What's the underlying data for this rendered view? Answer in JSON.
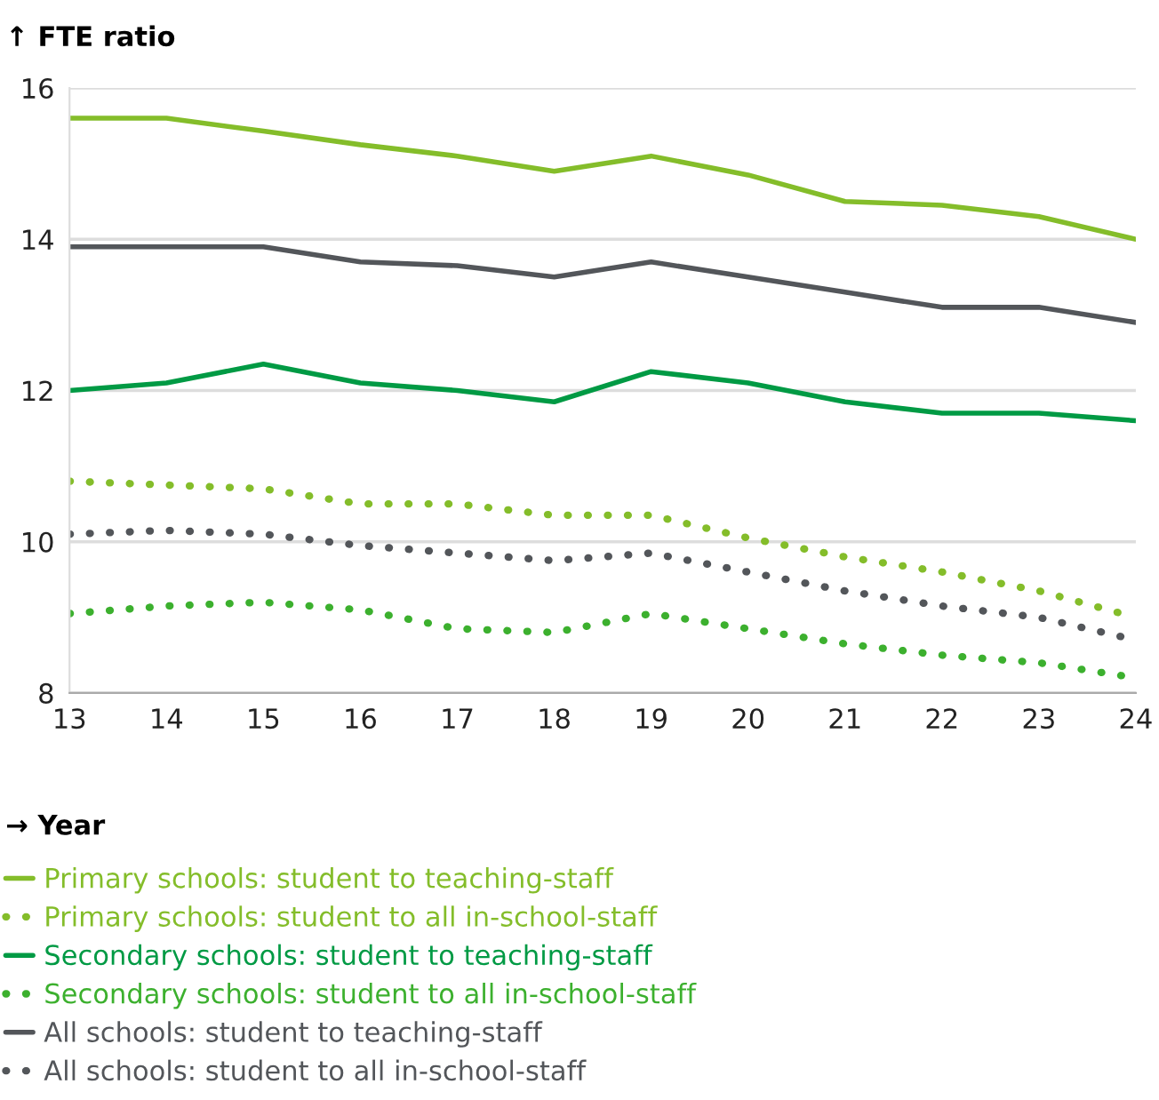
{
  "chart_data": {
    "type": "line",
    "ylabel": "↑ FTE ratio",
    "xlabel": "→ Year",
    "x": [
      13,
      14,
      15,
      16,
      17,
      18,
      19,
      20,
      21,
      22,
      23,
      24
    ],
    "xlim": [
      13,
      24
    ],
    "xticks": [
      13,
      14,
      15,
      16,
      17,
      18,
      19,
      20,
      21,
      22,
      23,
      24
    ],
    "ylim": [
      8,
      16
    ],
    "yticks": [
      8,
      10,
      12,
      14,
      16
    ],
    "grid": "y",
    "legend": "bottom",
    "marker": "none",
    "series": [
      {
        "name": "Primary schools: student to teaching-staff",
        "color": "#84bd2a",
        "line_style": "solid",
        "values": [
          15.6,
          15.6,
          15.43,
          15.25,
          15.1,
          14.9,
          15.1,
          14.85,
          14.5,
          14.45,
          14.3,
          14.0
        ]
      },
      {
        "name": "Primary schools: student to all in-school-staff",
        "color": "#84bd2a",
        "line_style": "dotted",
        "values": [
          10.8,
          10.75,
          10.7,
          10.5,
          10.5,
          10.35,
          10.35,
          10.05,
          9.8,
          9.6,
          9.35,
          9.0
        ]
      },
      {
        "name": "Secondary schools: student to teaching-staff",
        "color": "#009a44",
        "line_style": "solid",
        "values": [
          12.0,
          12.1,
          12.35,
          12.1,
          12.0,
          11.85,
          12.25,
          12.1,
          11.85,
          11.7,
          11.7,
          11.6
        ]
      },
      {
        "name": "Secondary schools: student to all in-school-staff",
        "color": "#3cb02e",
        "line_style": "dotted",
        "values": [
          9.05,
          9.15,
          9.2,
          9.1,
          8.85,
          8.8,
          9.05,
          8.85,
          8.65,
          8.5,
          8.4,
          8.2
        ]
      },
      {
        "name": "All schools: student to teaching-staff",
        "color": "#53565a",
        "line_style": "solid",
        "values": [
          13.9,
          13.9,
          13.9,
          13.7,
          13.65,
          13.5,
          13.7,
          13.5,
          13.3,
          13.1,
          13.1,
          12.9
        ]
      },
      {
        "name": "All schools: student to all in-school-staff",
        "color": "#53565a",
        "line_style": "dotted",
        "values": [
          10.1,
          10.15,
          10.1,
          9.95,
          9.85,
          9.75,
          9.85,
          9.6,
          9.35,
          9.15,
          9.0,
          8.7
        ]
      }
    ]
  }
}
